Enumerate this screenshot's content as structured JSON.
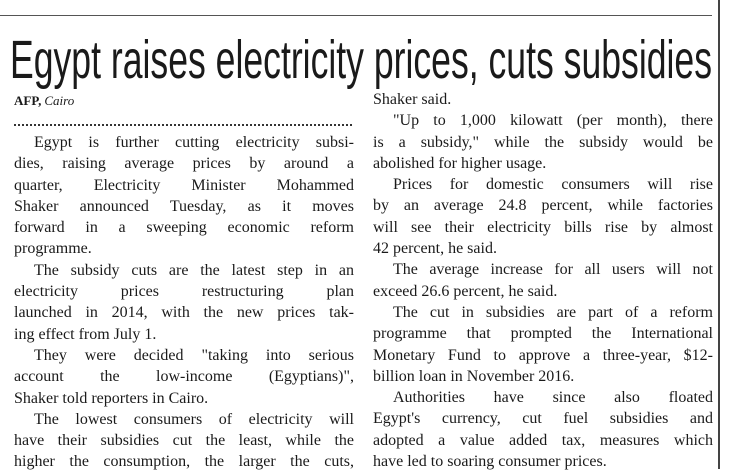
{
  "headline": "Egypt raises electricity prices, cuts subsidies",
  "byline": {
    "agency": "AFP,",
    "location": "Cairo"
  },
  "columns": [
    {
      "paragraphs": [
        {
          "lines": [
            "Egypt is further cutting electricity subsi-",
            "dies, raising average prices by around a",
            "quarter, Electricity Minister Mohammed",
            "Shaker announced Tuesday, as it moves",
            "forward in a sweeping economic reform",
            "programme."
          ]
        },
        {
          "lines": [
            "The subsidy cuts are the latest step in an",
            "electricity prices restructuring plan",
            "launched in 2014, with the new prices tak-",
            "ing effect from July 1."
          ]
        },
        {
          "lines": [
            "They were decided \"taking into serious",
            "account the low-income (Egyptians)\",",
            "Shaker told reporters in Cairo."
          ]
        },
        {
          "lines": [
            "The lowest consumers of electricity will",
            "have their subsidies cut the least, while the",
            "higher the consumption, the larger the cuts,"
          ]
        }
      ]
    },
    {
      "paragraphs": [
        {
          "lines": [
            "Shaker said."
          ]
        },
        {
          "lines": [
            "\"Up to 1,000 kilowatt (per month), there",
            "is a subsidy,\" while the subsidy would be",
            "abolished for higher usage."
          ]
        },
        {
          "lines": [
            "Prices for domestic consumers will rise",
            "by an average 24.8 percent, while factories",
            "will see their electricity bills rise by almost",
            "42 percent, he said."
          ]
        },
        {
          "lines": [
            "The average increase for all users will not",
            "exceed 26.6 percent, he said."
          ]
        },
        {
          "lines": [
            "The cut in subsidies are part of a reform",
            "programme that prompted the International",
            "Monetary Fund to approve a three-year, $12-",
            "billion loan in November 2016."
          ]
        },
        {
          "lines": [
            "Authorities have since also floated",
            "Egypt's currency, cut fuel subsidies and",
            "adopted a value added tax, measures which",
            "have led to soaring consumer prices."
          ]
        }
      ]
    }
  ]
}
